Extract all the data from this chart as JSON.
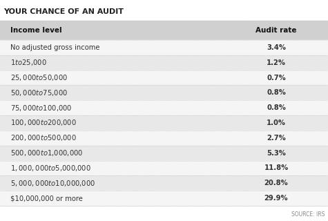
{
  "title": "YOUR CHANCE OF AN AUDIT",
  "header": [
    "Income level",
    "Audit rate"
  ],
  "rows": [
    [
      "No adjusted gross income",
      "3.4%"
    ],
    [
      "$1 to $25,000",
      "1.2%"
    ],
    [
      "$25,000 to $50,000",
      "0.7%"
    ],
    [
      "$50,000 to $75,000",
      "0.8%"
    ],
    [
      "$75,000 to $100,000",
      "0.8%"
    ],
    [
      "$100,000 to $200,000",
      "1.0%"
    ],
    [
      "$200,000 to $500,000",
      "2.7%"
    ],
    [
      "$500,000 to $1,000,000",
      "5.3%"
    ],
    [
      "$1,000,000 to $5,000,000",
      "11.8%"
    ],
    [
      "$5,000,000 to $10,000,000",
      "20.8%"
    ],
    [
      "$10,000,000 or more",
      "29.9%"
    ]
  ],
  "source": "SOURCE: IRS",
  "fig_bg_color": "#ffffff",
  "title_bg_color": "#ffffff",
  "header_bg_color": "#d0d0d0",
  "row_bg_even": "#f5f5f5",
  "row_bg_odd": "#e8e8e8",
  "bottom_bg_color": "#ffffff",
  "title_color": "#222222",
  "text_color": "#333333",
  "header_text_color": "#111111",
  "separator_color": "#bbbbbb",
  "source_color": "#888888",
  "title_fontsize": 8.0,
  "header_fontsize": 7.5,
  "row_fontsize": 7.2,
  "source_fontsize": 5.5
}
